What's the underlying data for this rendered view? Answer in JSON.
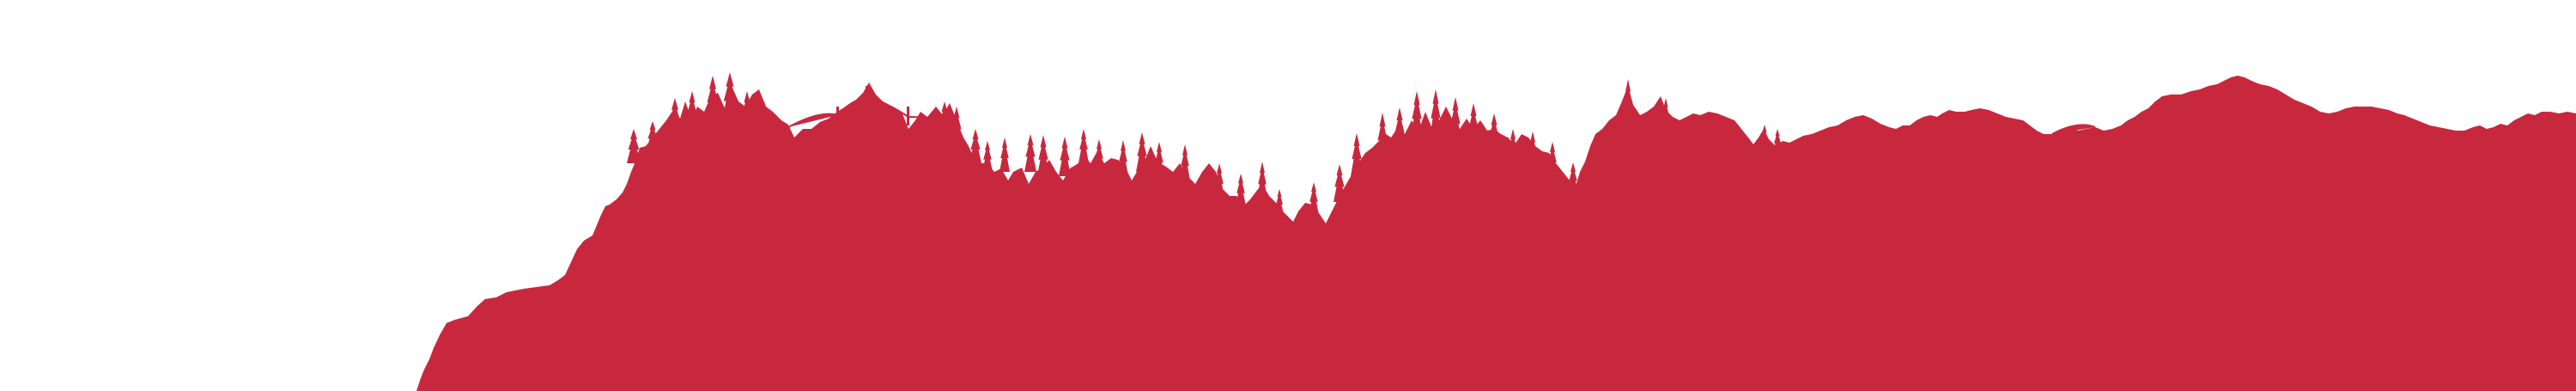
{
  "banner": {
    "description_icon": "forest-mountain-silhouette",
    "fill_color": "#c8283e",
    "background_color": "#ffffff"
  }
}
